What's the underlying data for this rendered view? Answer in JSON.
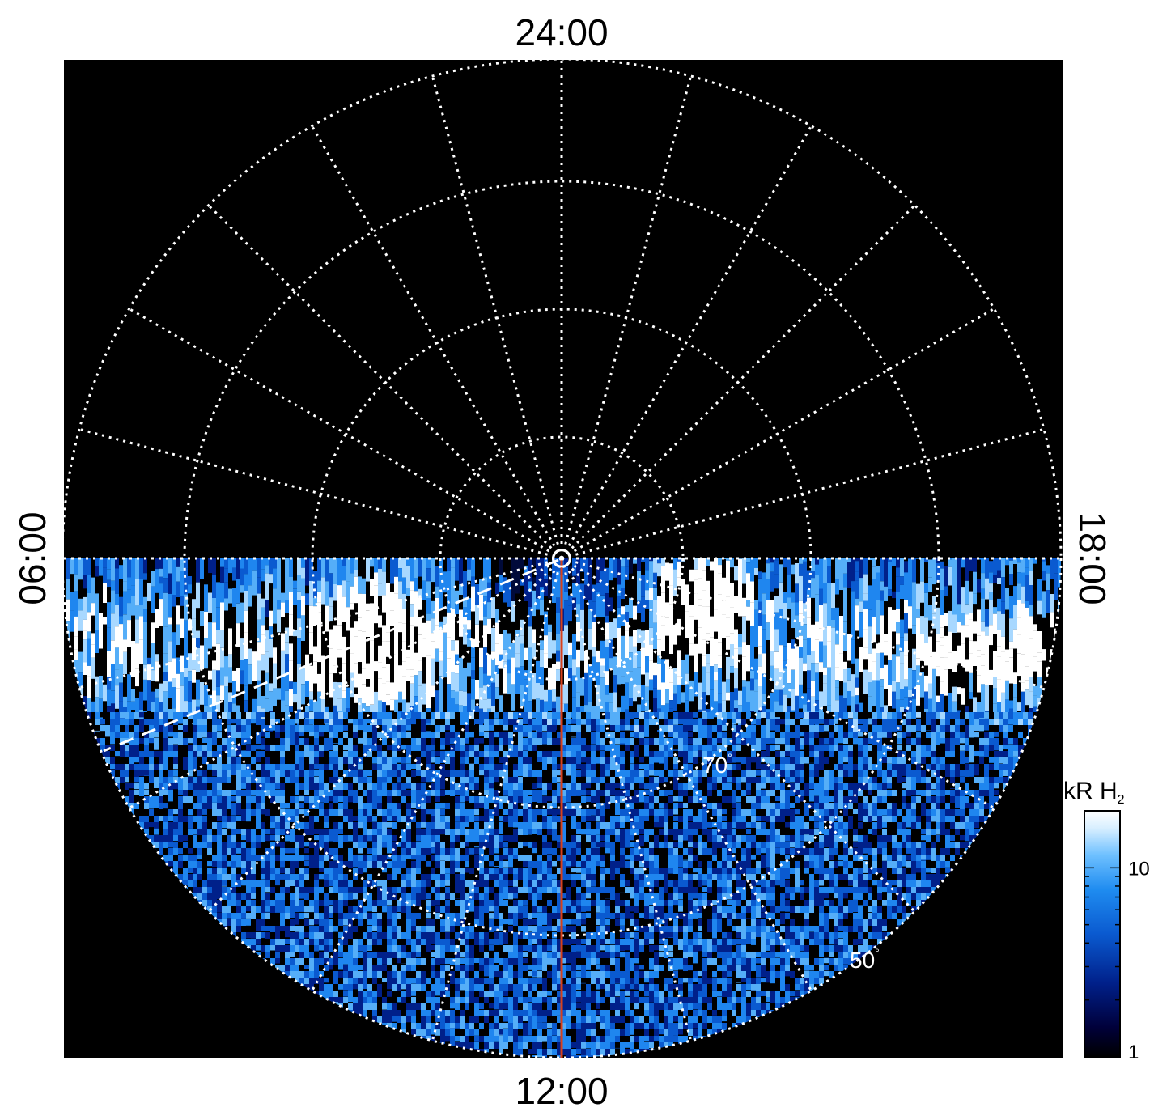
{
  "figure": {
    "local_time_labels": {
      "top": "24:00",
      "bottom": "12:00",
      "left": "06:00",
      "right": "18:00"
    },
    "latitude_labels": [
      {
        "text": "70",
        "unit": "°"
      },
      {
        "text": "50",
        "unit": "°"
      }
    ],
    "colors": {
      "background": "#000000",
      "grid": "#ffffff",
      "noon_meridian": "#d9401b",
      "auroral_low": "#000a3a",
      "auroral_mid": "#1f86ef",
      "auroral_high": "#ffffff"
    },
    "grid_style": "dotted",
    "meridian_spacing_hours": 1,
    "latitude_circles_deg": [
      80,
      70,
      60,
      50
    ]
  },
  "colorbar": {
    "title": "kR H",
    "title_subscript": "2",
    "scale": "log",
    "range": [
      1,
      20
    ],
    "tick_labels": [
      {
        "text": "10",
        "value": 10
      },
      {
        "text": "1",
        "value": 1
      }
    ],
    "colors": [
      "#000000",
      "#00003a",
      "#00208a",
      "#0a5ad0",
      "#1f8cf0",
      "#6ec0ff",
      "#d8efff",
      "#ffffff"
    ]
  }
}
